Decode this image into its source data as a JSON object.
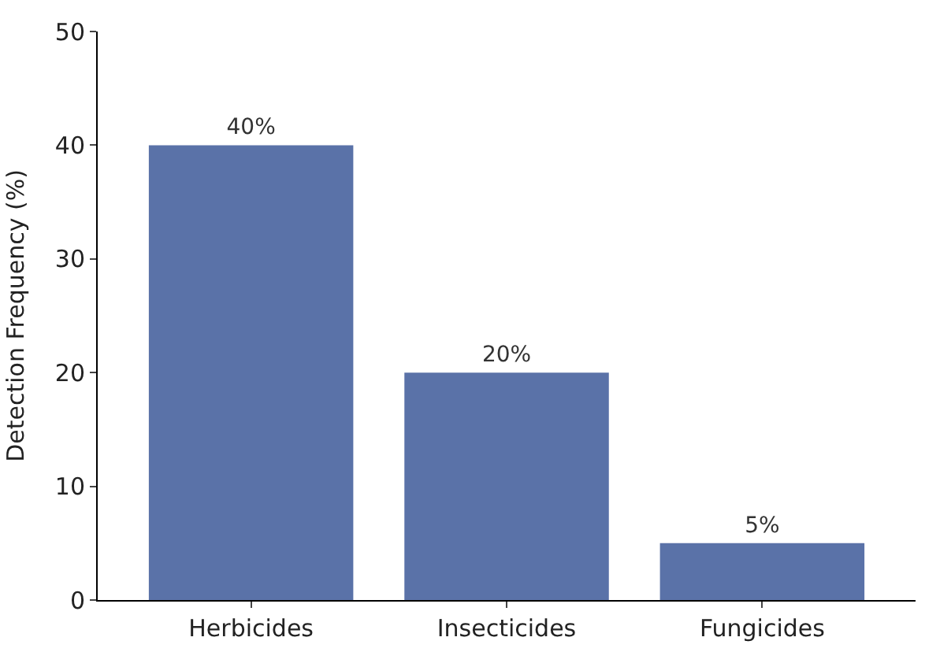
{
  "chart_data": {
    "type": "bar",
    "ylabel": "Detection Frequency (%)",
    "categories": [
      "Herbicides",
      "Insecticides",
      "Fungicides"
    ],
    "values": [
      40,
      20,
      5
    ],
    "value_labels": [
      "40%",
      "20%",
      "5%"
    ],
    "color": "#5a72a8",
    "ylim": [
      0,
      50
    ],
    "yticks": [
      0,
      10,
      20,
      30,
      40,
      50
    ]
  }
}
